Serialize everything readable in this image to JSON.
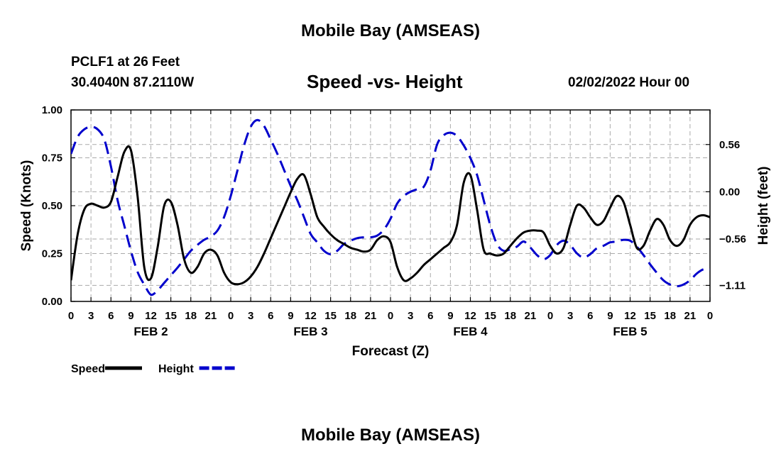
{
  "header": {
    "title": "Mobile Bay (AMSEAS)",
    "station": "PCLF1 at 26 Feet",
    "coordinates": "30.4040N  87.2110W",
    "datetime": "02/02/2022 Hour 00"
  },
  "footer": {
    "title": "Mobile Bay (AMSEAS)"
  },
  "colors": {
    "speed": "#000000",
    "height": "#0000cc",
    "grid": "#aaaaaa"
  },
  "chart_data": {
    "type": "line",
    "title": "Speed -vs- Height",
    "xlabel": "Forecast (Z)",
    "ylabel": "Speed (Knots)",
    "y2label": "Height (feet)",
    "x_unit": "hours from 02/02/2022 00Z",
    "xlim": [
      0,
      96
    ],
    "ylim": [
      0,
      1.0
    ],
    "y2lim": [
      -1.3,
      0.97
    ],
    "xticks": [
      0,
      3,
      6,
      9,
      12,
      15,
      18,
      21,
      24,
      27,
      30,
      33,
      36,
      39,
      42,
      45,
      48,
      51,
      54,
      57,
      60,
      63,
      66,
      69,
      72,
      75,
      78,
      81,
      84,
      87,
      90,
      93,
      96
    ],
    "xtick_labels": [
      "0",
      "3",
      "6",
      "9",
      "12",
      "15",
      "18",
      "21",
      "0",
      "3",
      "6",
      "9",
      "12",
      "15",
      "18",
      "21",
      "0",
      "3",
      "6",
      "9",
      "12",
      "15",
      "18",
      "21",
      "0",
      "3",
      "6",
      "9",
      "12",
      "15",
      "18",
      "21",
      "0"
    ],
    "day_labels": [
      {
        "label": "FEB 2",
        "x": 12
      },
      {
        "label": "FEB 3",
        "x": 36
      },
      {
        "label": "FEB 4",
        "x": 60
      },
      {
        "label": "FEB 5",
        "x": 84
      }
    ],
    "yticks": [
      0.0,
      0.25,
      0.5,
      0.75,
      1.0
    ],
    "ytick_labels": [
      "0.00",
      "0.25",
      "0.50",
      "0.75",
      "1.00"
    ],
    "y2ticks": [
      0.56,
      0.0,
      -0.56,
      -1.11
    ],
    "y2tick_labels": [
      "0.56",
      "0.00",
      "−0.56",
      "−1.11"
    ],
    "grid": true,
    "legend_position": "bottom-left",
    "series": [
      {
        "name": "Speed",
        "axis": "left",
        "style": "solid",
        "x": [
          0,
          1,
          2,
          3,
          4,
          5,
          6,
          7,
          8,
          9,
          10,
          11,
          12,
          13,
          14,
          15,
          16,
          17,
          18,
          19,
          20,
          21,
          22,
          23,
          24,
          25,
          26,
          27,
          28,
          29,
          30,
          31,
          32,
          33,
          34,
          35,
          36,
          37,
          38,
          39,
          40,
          41,
          42,
          43,
          44,
          45,
          46,
          47,
          48,
          49,
          50,
          51,
          52,
          53,
          54,
          55,
          56,
          57,
          58,
          59,
          60,
          61,
          62,
          63,
          64,
          65,
          66,
          67,
          68,
          69,
          70,
          71,
          72,
          73,
          74,
          75,
          76,
          77,
          78,
          79,
          80,
          81,
          82,
          83,
          84,
          85,
          86,
          87,
          88,
          89,
          90,
          91,
          92,
          93,
          94,
          95,
          96
        ],
        "values": [
          0.11,
          0.35,
          0.48,
          0.51,
          0.5,
          0.49,
          0.52,
          0.65,
          0.78,
          0.79,
          0.55,
          0.18,
          0.12,
          0.28,
          0.5,
          0.52,
          0.4,
          0.22,
          0.15,
          0.18,
          0.25,
          0.27,
          0.24,
          0.15,
          0.1,
          0.09,
          0.1,
          0.13,
          0.18,
          0.25,
          0.33,
          0.41,
          0.49,
          0.57,
          0.64,
          0.66,
          0.56,
          0.44,
          0.39,
          0.35,
          0.32,
          0.3,
          0.28,
          0.27,
          0.26,
          0.27,
          0.32,
          0.34,
          0.31,
          0.18,
          0.11,
          0.12,
          0.15,
          0.19,
          0.22,
          0.25,
          0.28,
          0.31,
          0.4,
          0.62,
          0.66,
          0.48,
          0.27,
          0.25,
          0.24,
          0.25,
          0.29,
          0.33,
          0.36,
          0.37,
          0.37,
          0.36,
          0.29,
          0.25,
          0.28,
          0.4,
          0.5,
          0.49,
          0.44,
          0.4,
          0.42,
          0.49,
          0.55,
          0.52,
          0.4,
          0.28,
          0.29,
          0.37,
          0.43,
          0.4,
          0.32,
          0.29,
          0.32,
          0.4,
          0.44,
          0.45,
          0.44
        ]
      },
      {
        "name": "Height",
        "axis": "right",
        "style": "dashed",
        "x": [
          0,
          1,
          2,
          3,
          4,
          5,
          6,
          7,
          8,
          9,
          10,
          11,
          12,
          13,
          14,
          15,
          16,
          17,
          18,
          19,
          20,
          21,
          22,
          23,
          24,
          25,
          26,
          27,
          28,
          29,
          30,
          31,
          32,
          33,
          34,
          35,
          36,
          37,
          38,
          39,
          40,
          41,
          42,
          43,
          44,
          45,
          46,
          47,
          48,
          49,
          50,
          51,
          52,
          53,
          54,
          55,
          56,
          57,
          58,
          59,
          60,
          61,
          62,
          63,
          64,
          65,
          66,
          67,
          68,
          69,
          70,
          71,
          72,
          73,
          74,
          75,
          76,
          77,
          78,
          79,
          80,
          81,
          82,
          83,
          84,
          85,
          86,
          87,
          88,
          89,
          90,
          91,
          92,
          93,
          94,
          95,
          96
        ],
        "values": [
          0.45,
          0.65,
          0.74,
          0.77,
          0.74,
          0.62,
          0.3,
          -0.1,
          -0.4,
          -0.7,
          -0.95,
          -1.1,
          -1.22,
          -1.17,
          -1.08,
          -0.99,
          -0.9,
          -0.8,
          -0.7,
          -0.63,
          -0.57,
          -0.53,
          -0.46,
          -0.3,
          -0.05,
          0.25,
          0.55,
          0.77,
          0.85,
          0.78,
          0.62,
          0.45,
          0.26,
          0.07,
          -0.1,
          -0.3,
          -0.5,
          -0.6,
          -0.7,
          -0.74,
          -0.7,
          -0.62,
          -0.58,
          -0.55,
          -0.54,
          -0.54,
          -0.52,
          -0.45,
          -0.32,
          -0.14,
          -0.05,
          0.0,
          0.03,
          0.06,
          0.25,
          0.56,
          0.67,
          0.7,
          0.66,
          0.55,
          0.4,
          0.2,
          -0.1,
          -0.4,
          -0.62,
          -0.7,
          -0.68,
          -0.65,
          -0.59,
          -0.66,
          -0.75,
          -0.8,
          -0.75,
          -0.63,
          -0.58,
          -0.63,
          -0.73,
          -0.78,
          -0.74,
          -0.67,
          -0.64,
          -0.6,
          -0.59,
          -0.57,
          -0.58,
          -0.65,
          -0.75,
          -0.86,
          -0.96,
          -1.05,
          -1.1,
          -1.12,
          -1.1,
          -1.05,
          -0.97,
          -0.92,
          -0.92
        ]
      }
    ]
  }
}
